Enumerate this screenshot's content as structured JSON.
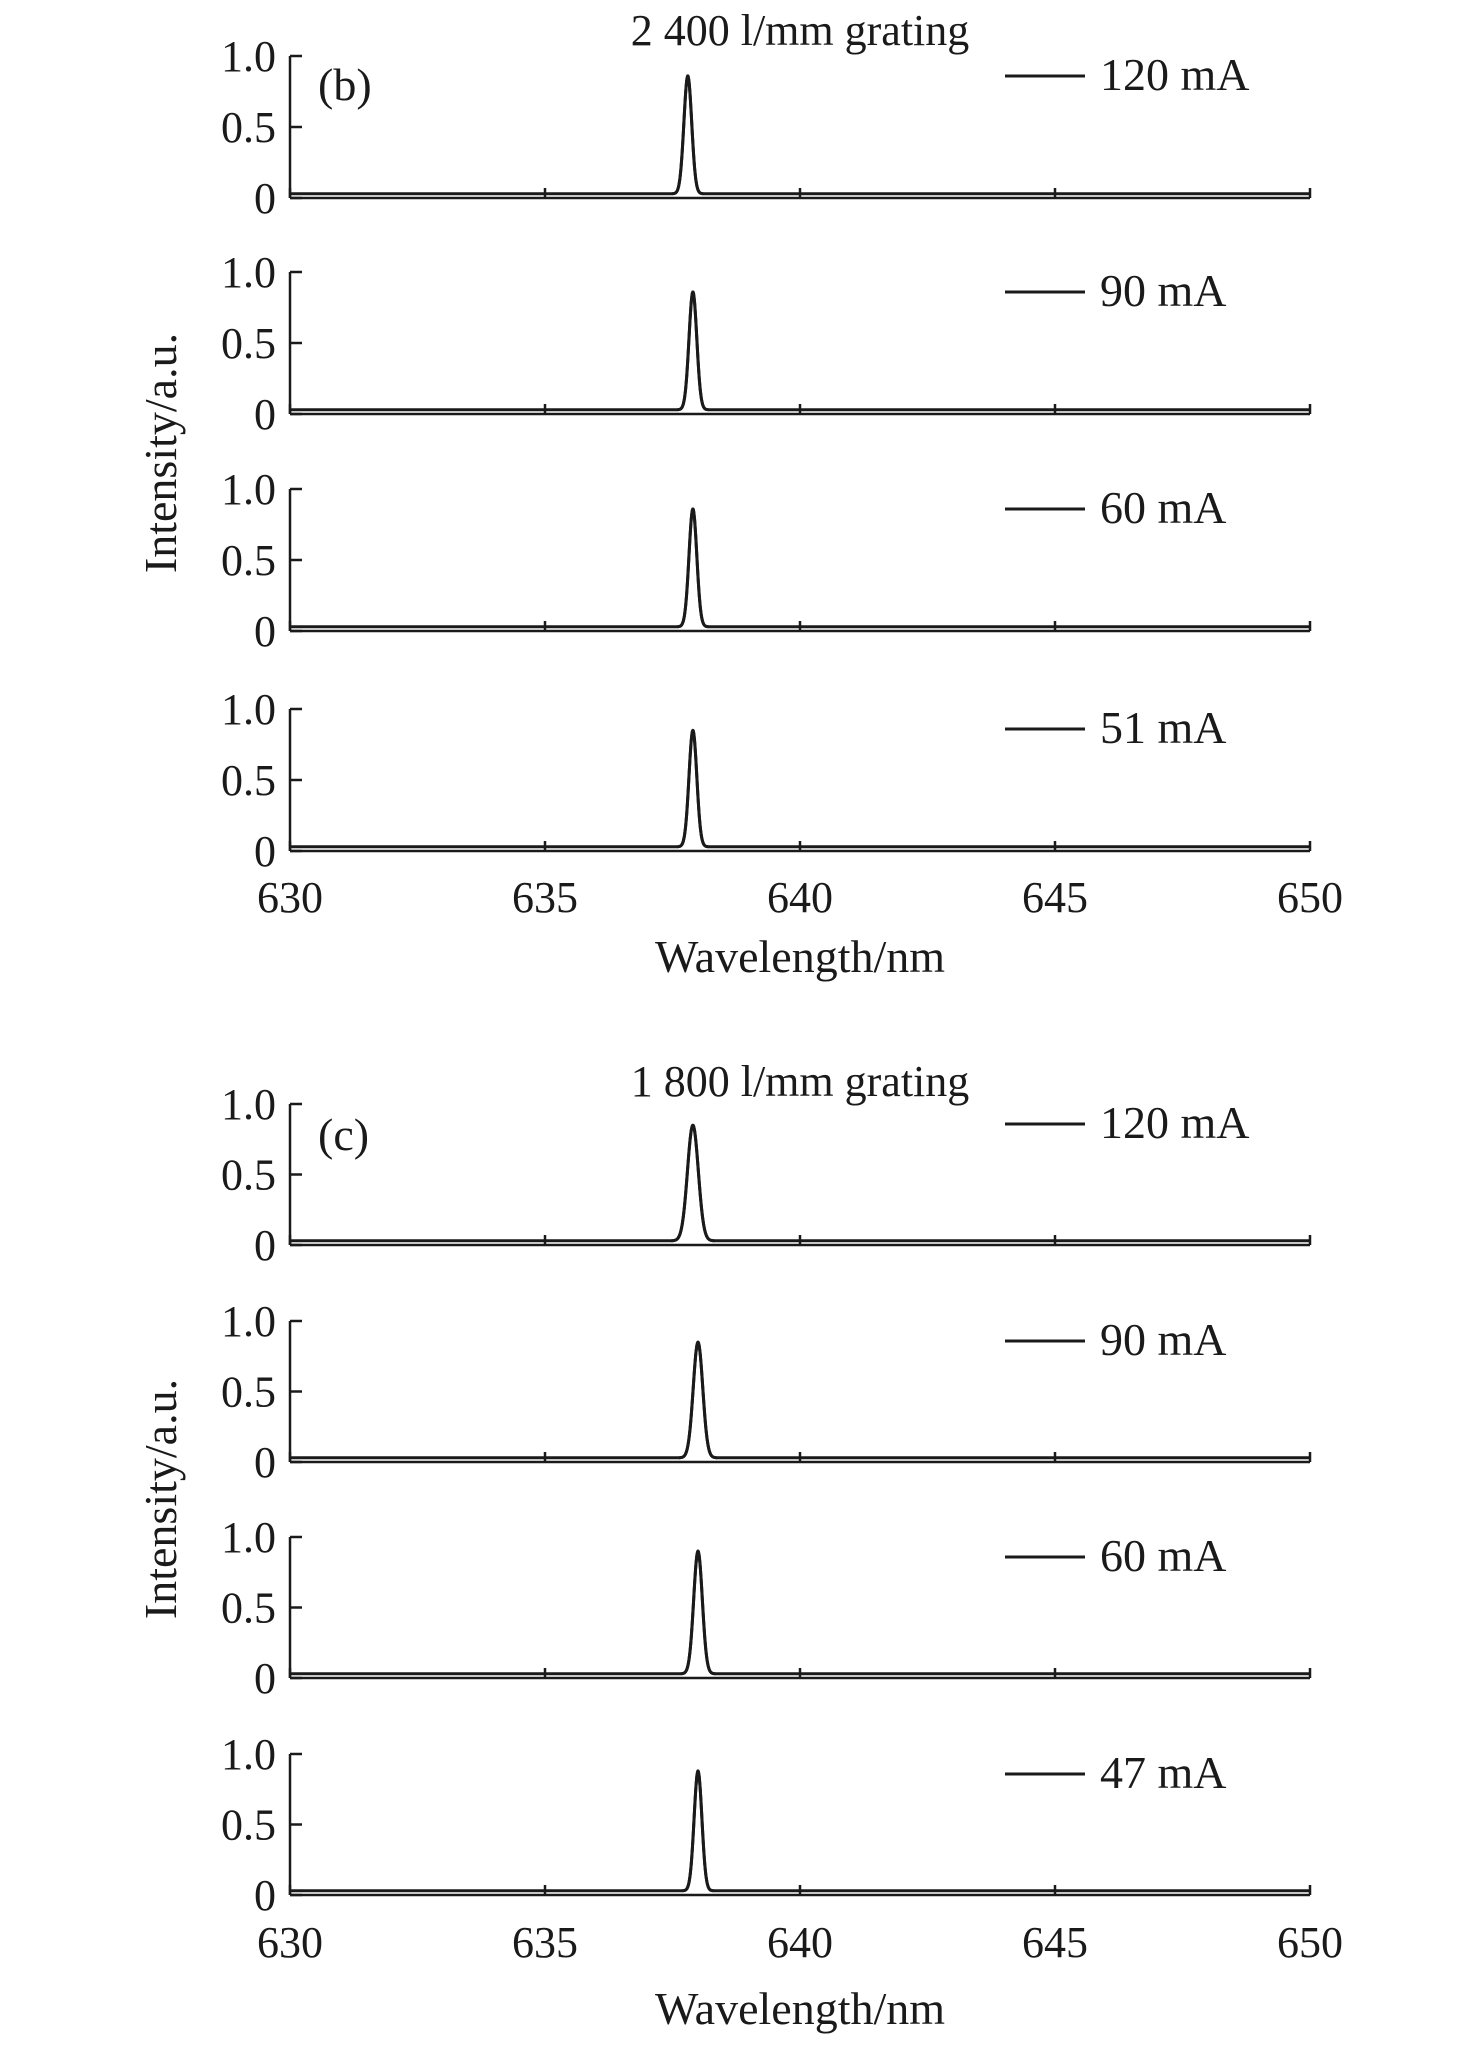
{
  "chart_data": [
    {
      "type": "line",
      "panel_label": "(b)",
      "title": "2 400 l/mm grating",
      "xlabel": "Wavelength/nm",
      "ylabel": "Intensity/a.u.",
      "xlim": [
        630,
        650
      ],
      "ylim": [
        0,
        1.0
      ],
      "x_ticks": [
        "630",
        "635",
        "640",
        "645",
        "650"
      ],
      "y_ticks": [
        "0",
        "0.5",
        "1.0"
      ],
      "grid": false,
      "legend_position": "top-right",
      "series": [
        {
          "name": "120 mA",
          "peak_x": 637.8,
          "peak_y": 0.86,
          "fwhm": 0.18,
          "baseline": 0.03
        },
        {
          "name": "90 mA",
          "peak_x": 637.9,
          "peak_y": 0.86,
          "fwhm": 0.18,
          "baseline": 0.03
        },
        {
          "name": "60 mA",
          "peak_x": 637.9,
          "peak_y": 0.86,
          "fwhm": 0.18,
          "baseline": 0.03
        },
        {
          "name": "51 mA",
          "peak_x": 637.9,
          "peak_y": 0.85,
          "fwhm": 0.18,
          "baseline": 0.03
        }
      ]
    },
    {
      "type": "line",
      "panel_label": "(c)",
      "title": "1 800 l/mm grating",
      "xlabel": "Wavelength/nm",
      "ylabel": "Intensity/a.u.",
      "xlim": [
        630,
        650
      ],
      "ylim": [
        0,
        1.0
      ],
      "x_ticks": [
        "630",
        "635",
        "640",
        "645",
        "650"
      ],
      "y_ticks": [
        "0",
        "0.5",
        "1.0"
      ],
      "grid": false,
      "legend_position": "top-right",
      "series": [
        {
          "name": "120 mA",
          "peak_x": 637.9,
          "peak_y": 0.85,
          "fwhm": 0.25,
          "baseline": 0.03
        },
        {
          "name": "90 mA",
          "peak_x": 638.0,
          "peak_y": 0.85,
          "fwhm": 0.22,
          "baseline": 0.03
        },
        {
          "name": "60 mA",
          "peak_x": 638.0,
          "peak_y": 0.9,
          "fwhm": 0.2,
          "baseline": 0.03
        },
        {
          "name": "47 mA",
          "peak_x": 638.0,
          "peak_y": 0.88,
          "fwhm": 0.18,
          "baseline": 0.03
        }
      ]
    }
  ]
}
